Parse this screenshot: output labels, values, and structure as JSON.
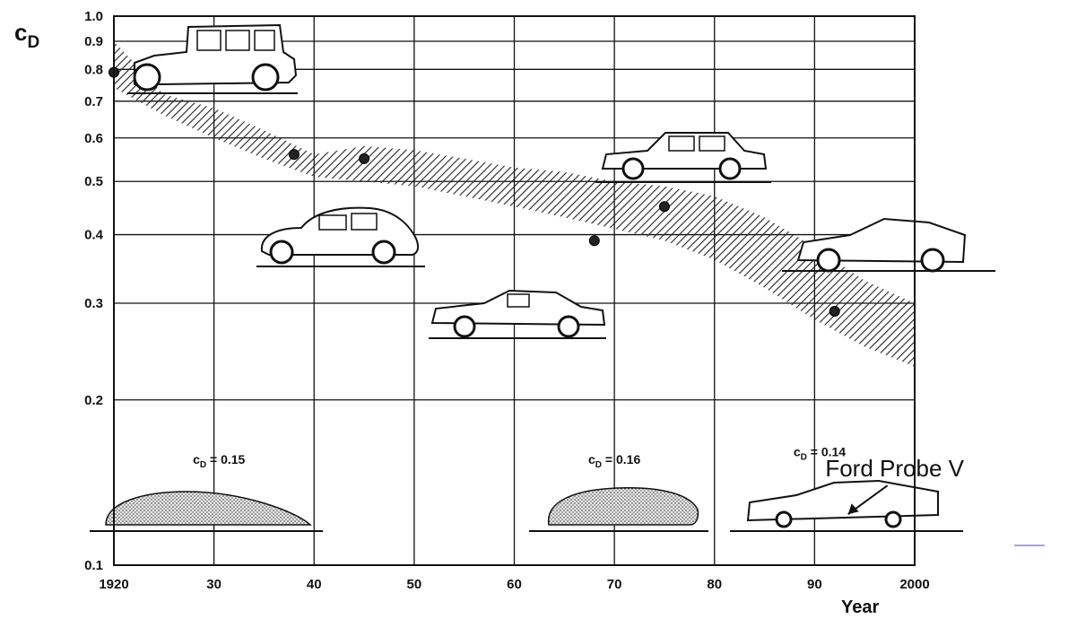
{
  "chart_data": {
    "type": "scatter",
    "title": "",
    "ylabel": "c",
    "ylabel_sub": "D",
    "xlabel": "Year",
    "yscale": "log",
    "ylim": [
      0.1,
      1.0
    ],
    "xlim": [
      1920,
      2000
    ],
    "yticks": [
      0.1,
      0.2,
      0.3,
      0.4,
      0.5,
      0.6,
      0.7,
      0.8,
      0.9,
      1.0
    ],
    "ytick_labels": [
      "0.1",
      "0.2",
      "0.3",
      "0.4",
      "0.5",
      "0.6",
      "0.7",
      "0.8",
      "0.9",
      "1.0"
    ],
    "xticks": [
      1920,
      1930,
      1940,
      1950,
      1960,
      1970,
      1980,
      1990,
      2000
    ],
    "xtick_labels": [
      "1920",
      "30",
      "40",
      "50",
      "60",
      "70",
      "80",
      "90",
      "2000"
    ],
    "grid": true,
    "band": {
      "name": "",
      "x": [
        1920,
        1925,
        1930,
        1935,
        1940,
        1945,
        1950,
        1955,
        1960,
        1965,
        1970,
        1975,
        1980,
        1985,
        1990,
        1995,
        2000
      ],
      "upper": [
        0.9,
        0.72,
        0.68,
        0.62,
        0.56,
        0.58,
        0.57,
        0.55,
        0.53,
        0.52,
        0.5,
        0.49,
        0.47,
        0.43,
        0.38,
        0.33,
        0.3
      ],
      "lower": [
        0.74,
        0.66,
        0.6,
        0.55,
        0.51,
        0.5,
        0.49,
        0.47,
        0.45,
        0.43,
        0.41,
        0.39,
        0.36,
        0.32,
        0.28,
        0.25,
        0.23
      ]
    },
    "points": [
      {
        "x": 1920,
        "y": 0.79
      },
      {
        "x": 1938,
        "y": 0.56
      },
      {
        "x": 1945,
        "y": 0.55
      },
      {
        "x": 1968,
        "y": 0.39
      },
      {
        "x": 1975,
        "y": 0.45
      },
      {
        "x": 1992,
        "y": 0.29
      }
    ],
    "annotations": [
      {
        "text": "c",
        "sub": "D",
        "rest": " = 0.15",
        "x": 1930.5,
        "y": 0.153
      },
      {
        "text": "c",
        "sub": "D",
        "rest": " = 0.16",
        "x": 1970,
        "y": 0.153
      },
      {
        "text": "c",
        "sub": "D",
        "rest": " = 0.14",
        "x": 1990.5,
        "y": 0.158
      }
    ],
    "callout": {
      "text": "Ford Probe V",
      "x": 1998,
      "y": 0.145
    }
  }
}
